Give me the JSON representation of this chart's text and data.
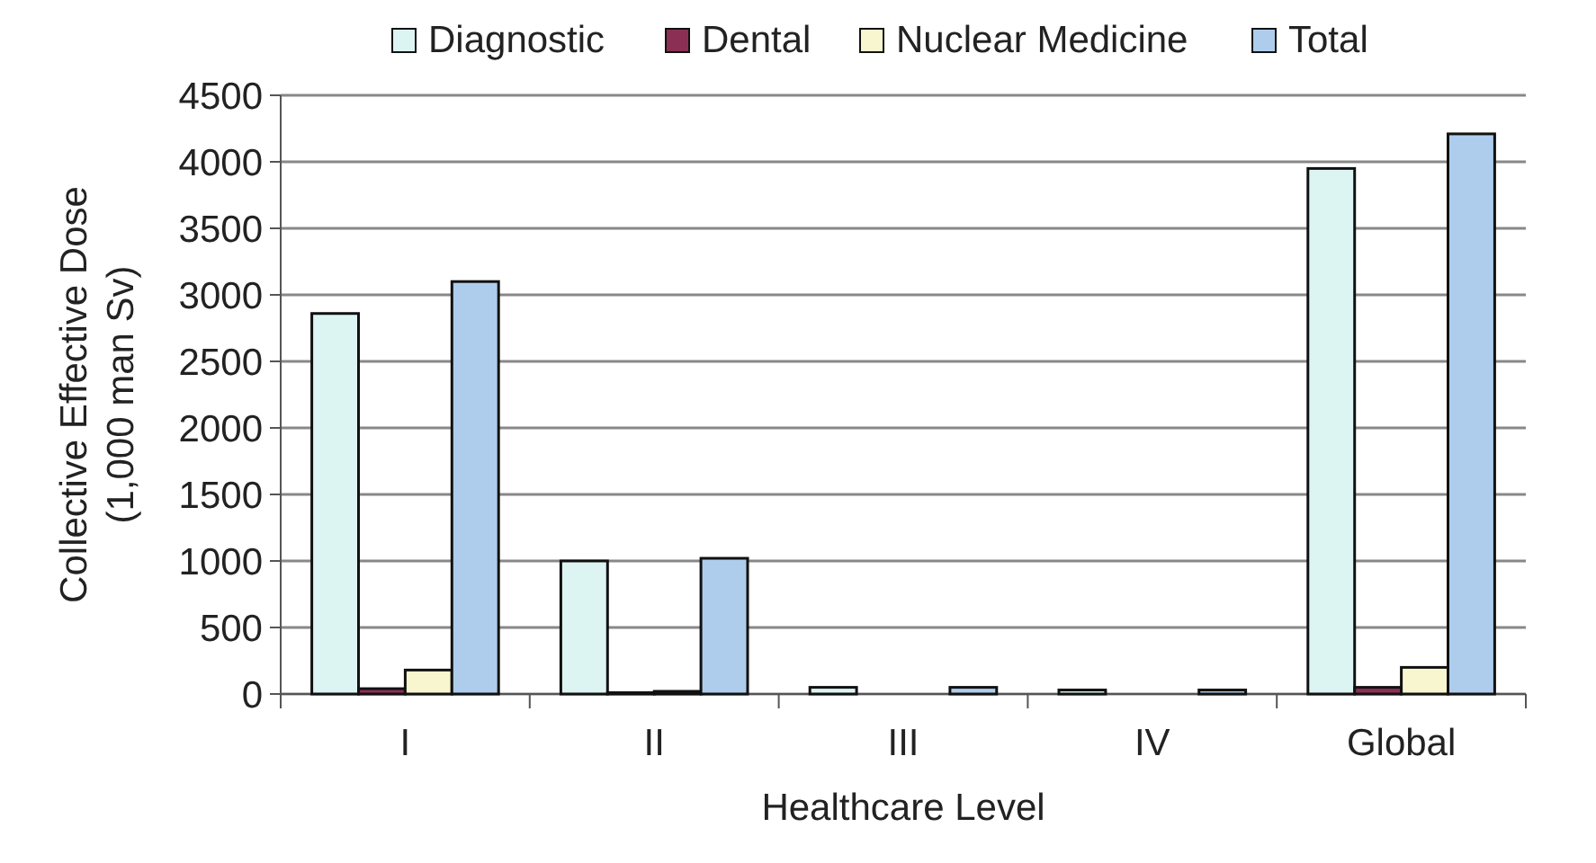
{
  "chart_data": {
    "type": "bar",
    "xlabel": "Healthcare Level",
    "ylabel": "Collective Effective Dose\n(1,000 man Sv)",
    "categories": [
      "I",
      "II",
      "III",
      "IV",
      "Global"
    ],
    "series": [
      {
        "name": "Diagnostic",
        "color": "#dcf5f3",
        "values": [
          2860,
          1000,
          50,
          30,
          3950
        ]
      },
      {
        "name": "Dental",
        "color": "#8b2f55",
        "values": [
          40,
          10,
          0,
          0,
          50
        ]
      },
      {
        "name": "Nuclear Medicine",
        "color": "#f8f6cf",
        "values": [
          180,
          20,
          0,
          0,
          200
        ]
      },
      {
        "name": "Total",
        "color": "#aecdec",
        "values": [
          3100,
          1020,
          50,
          30,
          4210
        ]
      }
    ],
    "ylim": [
      0,
      4500
    ],
    "yticks": [
      0,
      500,
      1000,
      1500,
      2000,
      2500,
      3000,
      3500,
      4000,
      4500
    ],
    "grid": "y",
    "legend": "top"
  }
}
